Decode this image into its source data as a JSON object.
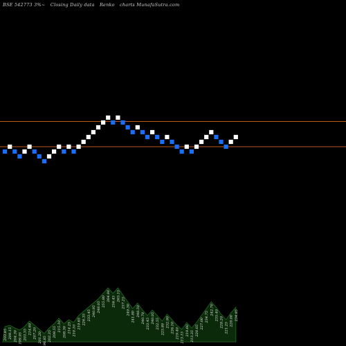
{
  "header": {
    "symbol_label": "BSE 542773 3%~",
    "desc_label": "Closing Daily data",
    "type_label": "Renko",
    "site_label": "charts MunafaSutra.com"
  },
  "colors": {
    "background": "#000000",
    "up_brick": "#ffffff",
    "down_brick": "#1a6ef5",
    "level_line": "#c0581a",
    "volume_fill": "#0a2a0a",
    "volume_stroke": "#1f5a1f",
    "label_text": "#e6e6e6"
  },
  "chart_data": {
    "type": "renko",
    "brick_size": "3%",
    "bricks": [
      {
        "level": 0,
        "dir": "down"
      },
      {
        "level": 1,
        "dir": "up"
      },
      {
        "level": 0,
        "dir": "down"
      },
      {
        "level": -1,
        "dir": "down"
      },
      {
        "level": 0,
        "dir": "up"
      },
      {
        "level": 1,
        "dir": "up"
      },
      {
        "level": 0,
        "dir": "down"
      },
      {
        "level": -1,
        "dir": "down"
      },
      {
        "level": -2,
        "dir": "down"
      },
      {
        "level": -1,
        "dir": "up"
      },
      {
        "level": 0,
        "dir": "up"
      },
      {
        "level": 1,
        "dir": "up"
      },
      {
        "level": 0,
        "dir": "down"
      },
      {
        "level": 1,
        "dir": "up"
      },
      {
        "level": 0,
        "dir": "down"
      },
      {
        "level": 1,
        "dir": "up"
      },
      {
        "level": 2,
        "dir": "up"
      },
      {
        "level": 3,
        "dir": "up"
      },
      {
        "level": 4,
        "dir": "up"
      },
      {
        "level": 5,
        "dir": "up"
      },
      {
        "level": 6,
        "dir": "up"
      },
      {
        "level": 7,
        "dir": "up"
      },
      {
        "level": 6,
        "dir": "down"
      },
      {
        "level": 7,
        "dir": "up"
      },
      {
        "level": 6,
        "dir": "down"
      },
      {
        "level": 5,
        "dir": "down"
      },
      {
        "level": 4,
        "dir": "down"
      },
      {
        "level": 5,
        "dir": "up"
      },
      {
        "level": 4,
        "dir": "down"
      },
      {
        "level": 3,
        "dir": "down"
      },
      {
        "level": 4,
        "dir": "up"
      },
      {
        "level": 3,
        "dir": "down"
      },
      {
        "level": 2,
        "dir": "down"
      },
      {
        "level": 3,
        "dir": "up"
      },
      {
        "level": 2,
        "dir": "down"
      },
      {
        "level": 1,
        "dir": "down"
      },
      {
        "level": 0,
        "dir": "down"
      },
      {
        "level": 1,
        "dir": "up"
      },
      {
        "level": 0,
        "dir": "down"
      },
      {
        "level": 1,
        "dir": "up"
      },
      {
        "level": 2,
        "dir": "up"
      },
      {
        "level": 3,
        "dir": "up"
      },
      {
        "level": 4,
        "dir": "up"
      },
      {
        "level": 3,
        "dir": "down"
      },
      {
        "level": 2,
        "dir": "down"
      },
      {
        "level": 1,
        "dir": "down"
      },
      {
        "level": 2,
        "dir": "up"
      },
      {
        "level": 3,
        "dir": "up"
      }
    ],
    "support_levels": [
      6,
      0.5
    ],
    "volume": [
      {
        "v": 22,
        "label": "203.85"
      },
      {
        "v": 24,
        "label": "209.15"
      },
      {
        "v": 20,
        "label": "204.30"
      },
      {
        "v": 17,
        "label": "199.95"
      },
      {
        "v": 22,
        "label": "203.35"
      },
      {
        "v": 30,
        "label": "214.60"
      },
      {
        "v": 24,
        "label": "207.20"
      },
      {
        "v": 18,
        "label": "201.20"
      },
      {
        "v": 12,
        "label": "196.85"
      },
      {
        "v": 20,
        "label": "202.35"
      },
      {
        "v": 26,
        "label": "208.55"
      },
      {
        "v": 34,
        "label": "215.10"
      },
      {
        "v": 26,
        "label": "208.30"
      },
      {
        "v": 32,
        "label": "214.25"
      },
      {
        "v": 28,
        "label": "210.10"
      },
      {
        "v": 38,
        "label": "219.65"
      },
      {
        "v": 44,
        "label": "226.35"
      },
      {
        "v": 50,
        "label": "233.45"
      },
      {
        "v": 56,
        "label": "240.95"
      },
      {
        "v": 62,
        "label": "248.05"
      },
      {
        "v": 70,
        "label": "255.80"
      },
      {
        "v": 78,
        "label": "264.90"
      },
      {
        "v": 70,
        "label": "256.45"
      },
      {
        "v": 78,
        "label": "265.15"
      },
      {
        "v": 68,
        "label": "257.25"
      },
      {
        "v": 58,
        "label": "249.30"
      },
      {
        "v": 48,
        "label": "241.80"
      },
      {
        "v": 56,
        "label": "248.50"
      },
      {
        "v": 46,
        "label": "240.70"
      },
      {
        "v": 38,
        "label": "233.45"
      },
      {
        "v": 46,
        "label": "240.05"
      },
      {
        "v": 38,
        "label": "232.55"
      },
      {
        "v": 30,
        "label": "225.80"
      },
      {
        "v": 40,
        "label": "232.90"
      },
      {
        "v": 32,
        "label": "226.10"
      },
      {
        "v": 24,
        "label": "219.40"
      },
      {
        "v": 18,
        "label": "213.15"
      },
      {
        "v": 28,
        "label": "219.60"
      },
      {
        "v": 20,
        "label": "213.35"
      },
      {
        "v": 28,
        "label": "220.05"
      },
      {
        "v": 38,
        "label": "227.00"
      },
      {
        "v": 48,
        "label": "234.75"
      },
      {
        "v": 58,
        "label": "242.70"
      },
      {
        "v": 50,
        "label": "235.40"
      },
      {
        "v": 40,
        "label": "228.20"
      },
      {
        "v": 32,
        "label": "221.25"
      },
      {
        "v": 42,
        "label": "228.00"
      },
      {
        "v": 50,
        "label": "234.85"
      }
    ]
  }
}
